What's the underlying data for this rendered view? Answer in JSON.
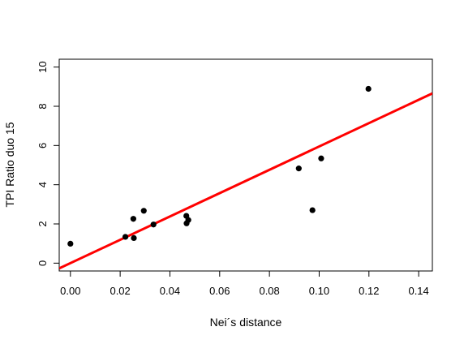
{
  "chart_data": {
    "type": "scatter",
    "title": "",
    "xlabel": "Nei´s distance",
    "ylabel": "TPI Ratio duo 15",
    "xlim": [
      -0.0045,
      0.1455
    ],
    "ylim": [
      -0.4,
      10.4
    ],
    "x_ticks": [
      "0.00",
      "0.02",
      "0.04",
      "0.06",
      "0.08",
      "0.10",
      "0.12",
      "0.14"
    ],
    "x_tick_values": [
      0.0,
      0.02,
      0.04,
      0.06,
      0.08,
      0.1,
      0.12,
      0.14
    ],
    "y_ticks": [
      "0",
      "2",
      "4",
      "6",
      "8",
      "10"
    ],
    "y_tick_values": [
      0,
      2,
      4,
      6,
      8,
      10
    ],
    "points": [
      {
        "x": 0.0,
        "y": 0.99
      },
      {
        "x": 0.0221,
        "y": 1.34
      },
      {
        "x": 0.0255,
        "y": 1.28
      },
      {
        "x": 0.0253,
        "y": 2.26
      },
      {
        "x": 0.0295,
        "y": 2.67
      },
      {
        "x": 0.0334,
        "y": 1.97
      },
      {
        "x": 0.0466,
        "y": 2.41
      },
      {
        "x": 0.0467,
        "y": 2.03
      },
      {
        "x": 0.0474,
        "y": 2.2
      },
      {
        "x": 0.0918,
        "y": 4.83
      },
      {
        "x": 0.0973,
        "y": 2.7
      },
      {
        "x": 0.1008,
        "y": 5.34
      },
      {
        "x": 0.1198,
        "y": 8.89
      }
    ],
    "fit_line": {
      "intercept": 0.0,
      "slope": 59.5,
      "color": "#ff0000"
    },
    "point_color": "#000000",
    "grid": false,
    "legend": "none"
  }
}
